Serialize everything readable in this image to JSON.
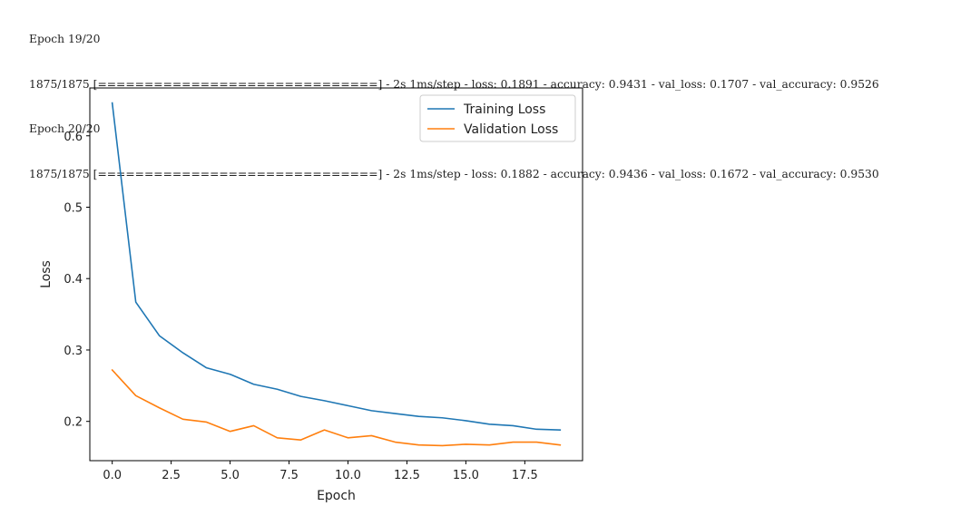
{
  "console": {
    "lines": [
      "Epoch 19/20",
      "1875/1875 [==============================] - 2s 1ms/step - loss: 0.1891 - accuracy: 0.9431 - val_loss: 0.1707 - val_accuracy: 0.9526",
      "Epoch 20/20",
      "1875/1875 [==============================] - 2s 1ms/step - loss: 0.1882 - accuracy: 0.9436 - val_loss: 0.1672 - val_accuracy: 0.9530"
    ]
  },
  "chart_data": {
    "type": "line",
    "title": "",
    "xlabel": "Epoch",
    "ylabel": "Loss",
    "xlim": [
      -0.95,
      19.95
    ],
    "ylim": [
      0.145,
      0.667
    ],
    "xticks": [
      0.0,
      2.5,
      5.0,
      7.5,
      10.0,
      12.5,
      15.0,
      17.5
    ],
    "xtick_labels": [
      "0.0",
      "2.5",
      "5.0",
      "7.5",
      "10.0",
      "12.5",
      "15.0",
      "17.5"
    ],
    "yticks": [
      0.2,
      0.3,
      0.4,
      0.5,
      0.6
    ],
    "ytick_labels": [
      "0.2",
      "0.3",
      "0.4",
      "0.5",
      "0.6"
    ],
    "grid": false,
    "legend_position": "top-right",
    "x": [
      0,
      1,
      2,
      3,
      4,
      5,
      6,
      7,
      8,
      9,
      10,
      11,
      12,
      13,
      14,
      15,
      16,
      17,
      18,
      19
    ],
    "series": [
      {
        "name": "Training Loss",
        "color": "#1f77b4",
        "values": [
          0.646,
          0.367,
          0.32,
          0.296,
          0.275,
          0.266,
          0.252,
          0.245,
          0.235,
          0.229,
          0.222,
          0.215,
          0.211,
          0.207,
          0.205,
          0.201,
          0.196,
          0.194,
          0.189,
          0.188
        ]
      },
      {
        "name": "Validation Loss",
        "color": "#ff7f0e",
        "values": [
          0.272,
          0.236,
          0.219,
          0.203,
          0.199,
          0.186,
          0.194,
          0.177,
          0.174,
          0.188,
          0.177,
          0.18,
          0.171,
          0.167,
          0.166,
          0.168,
          0.167,
          0.171,
          0.171,
          0.167
        ]
      }
    ]
  }
}
